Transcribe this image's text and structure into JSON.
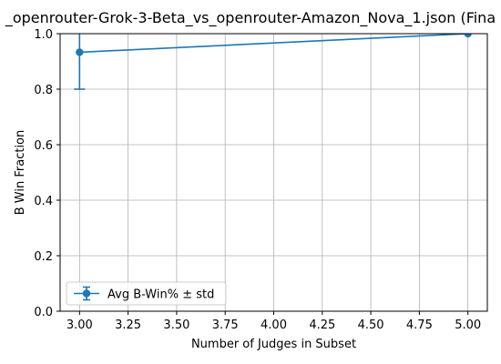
{
  "chart_data": {
    "type": "line",
    "title": "_openrouter-Grok-3-Beta_vs_openrouter-Amazon_Nova_1.json (Fina",
    "xlabel": "Number of Judges in Subset",
    "ylabel": "B Win Fraction",
    "xlim": [
      2.9,
      5.1
    ],
    "ylim": [
      0.0,
      1.0
    ],
    "x_ticks": [
      3.0,
      3.25,
      3.5,
      3.75,
      4.0,
      4.25,
      4.5,
      4.75,
      5.0
    ],
    "x_tick_labels": [
      "3.00",
      "3.25",
      "3.50",
      "3.75",
      "4.00",
      "4.25",
      "4.50",
      "4.75",
      "5.00"
    ],
    "y_ticks": [
      0.0,
      0.2,
      0.4,
      0.6,
      0.8,
      1.0
    ],
    "y_tick_labels": [
      "0.0",
      "0.2",
      "0.4",
      "0.6",
      "0.8",
      "1.0"
    ],
    "grid": true,
    "legend_placement": "lower-left",
    "series": [
      {
        "name": "Avg B-Win% ± std",
        "color": "#1f77b4",
        "marker": "circle",
        "x": [
          3.0,
          5.0
        ],
        "y": [
          0.933,
          1.0
        ],
        "yerr": [
          0.133,
          0.0
        ]
      }
    ]
  }
}
